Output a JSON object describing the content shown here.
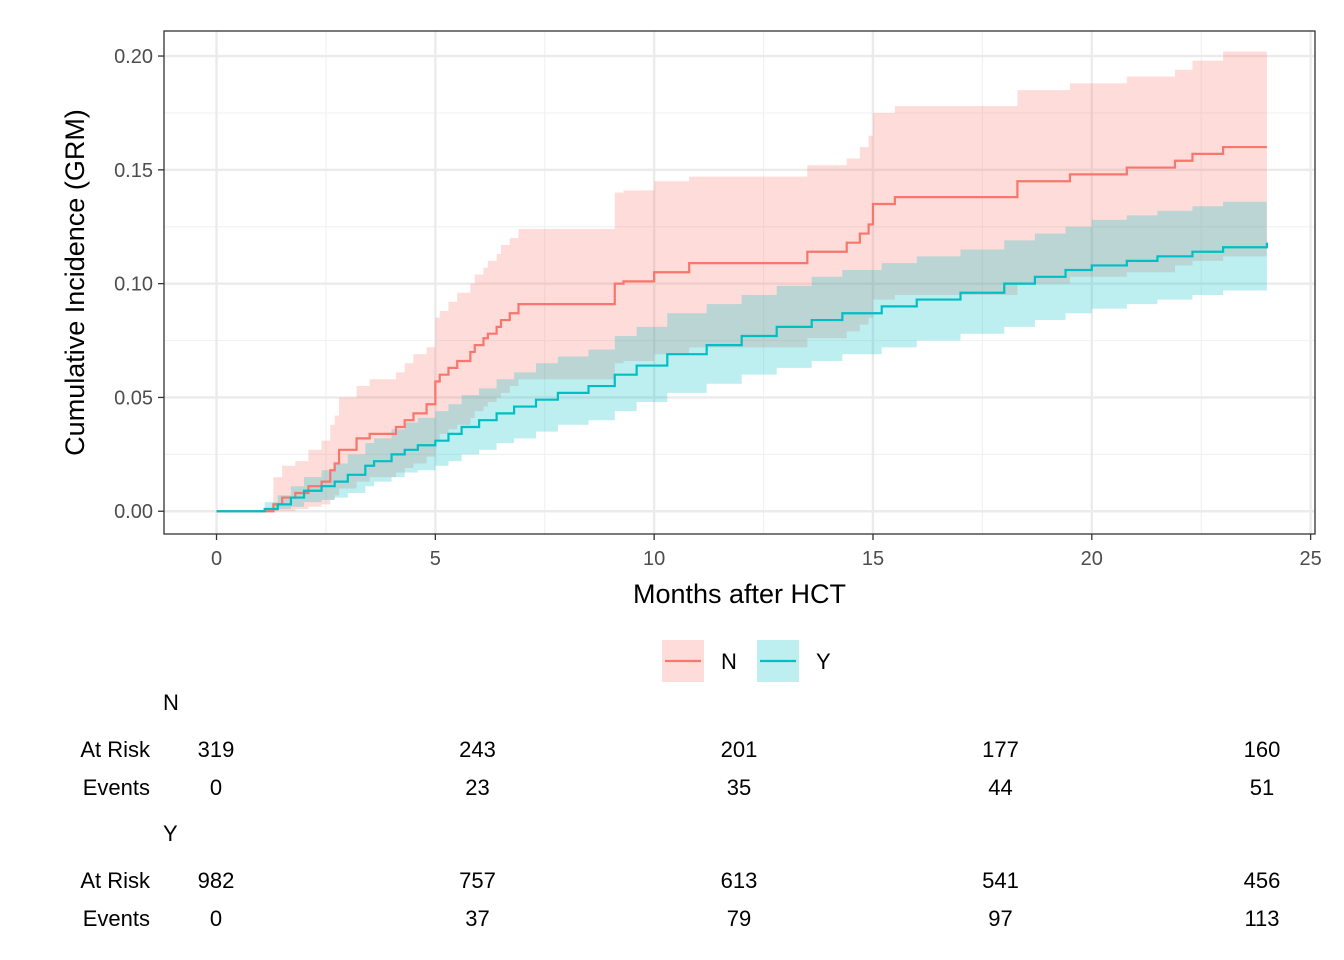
{
  "chart_data": {
    "type": "line",
    "xlabel": "Months after HCT",
    "ylabel": "Cumulative Incidence (GRM)",
    "xlim": [
      -1.2,
      25.1
    ],
    "ylim": [
      -0.01,
      0.211
    ],
    "x_ticks": [
      0,
      5,
      10,
      15,
      20,
      25
    ],
    "y_ticks": [
      0.0,
      0.05,
      0.1,
      0.15,
      0.2
    ],
    "x_tick_labels": [
      "0",
      "5",
      "10",
      "15",
      "20",
      "25"
    ],
    "y_tick_labels": [
      "0.00",
      "0.05",
      "0.10",
      "0.15",
      "0.20"
    ],
    "grid": true,
    "legend_position": "bottom",
    "series": [
      {
        "name": "N",
        "color": "#F8766D",
        "band_color": "#FBD5D1",
        "x": [
          0,
          0.9,
          1.3,
          1.5,
          1.8,
          2.1,
          2.4,
          2.6,
          2.7,
          2.8,
          3.2,
          3.5,
          4.1,
          4.3,
          4.5,
          4.8,
          5.0,
          5.1,
          5.3,
          5.5,
          5.8,
          5.9,
          6.1,
          6.2,
          6.4,
          6.5,
          6.7,
          6.9,
          9.1,
          9.3,
          10.0,
          10.8,
          13.5,
          14.4,
          14.7,
          14.9,
          15.0,
          15.5,
          18.3,
          19.5,
          20.8,
          21.9,
          22.3,
          23.0,
          24.0
        ],
        "y": [
          0,
          0,
          0.003,
          0.006,
          0.008,
          0.011,
          0.013,
          0.018,
          0.021,
          0.027,
          0.032,
          0.034,
          0.037,
          0.04,
          0.043,
          0.047,
          0.057,
          0.06,
          0.063,
          0.066,
          0.07,
          0.073,
          0.076,
          0.078,
          0.081,
          0.084,
          0.087,
          0.091,
          0.1,
          0.101,
          0.105,
          0.109,
          0.114,
          0.118,
          0.122,
          0.126,
          0.135,
          0.138,
          0.145,
          0.148,
          0.151,
          0.154,
          0.157,
          0.16,
          0.16
        ],
        "lower": [
          0,
          0,
          0.0,
          0.0,
          0.001,
          0.002,
          0.003,
          0.005,
          0.007,
          0.01,
          0.013,
          0.015,
          0.017,
          0.019,
          0.021,
          0.024,
          0.031,
          0.034,
          0.036,
          0.038,
          0.041,
          0.044,
          0.046,
          0.048,
          0.05,
          0.052,
          0.055,
          0.058,
          0.065,
          0.066,
          0.069,
          0.072,
          0.076,
          0.079,
          0.082,
          0.085,
          0.093,
          0.095,
          0.1,
          0.103,
          0.105,
          0.108,
          0.11,
          0.112,
          0.112
        ],
        "upper": [
          0,
          0,
          0.015,
          0.02,
          0.022,
          0.027,
          0.031,
          0.038,
          0.042,
          0.05,
          0.055,
          0.058,
          0.061,
          0.065,
          0.069,
          0.072,
          0.085,
          0.088,
          0.092,
          0.096,
          0.1,
          0.104,
          0.107,
          0.11,
          0.113,
          0.117,
          0.12,
          0.124,
          0.14,
          0.141,
          0.145,
          0.147,
          0.152,
          0.155,
          0.16,
          0.165,
          0.175,
          0.178,
          0.185,
          0.188,
          0.191,
          0.194,
          0.198,
          0.202,
          0.202
        ]
      },
      {
        "name": "Y",
        "color": "#00BFC4",
        "band_color": "#C4EDEE",
        "x": [
          0,
          0.9,
          1.1,
          1.4,
          1.7,
          2.0,
          2.4,
          2.7,
          3.0,
          3.4,
          3.6,
          4.0,
          4.3,
          4.6,
          5.0,
          5.3,
          5.6,
          6.0,
          6.4,
          6.8,
          7.3,
          7.8,
          8.5,
          9.1,
          9.6,
          10.3,
          11.2,
          12.0,
          12.8,
          13.6,
          14.3,
          15.2,
          16.0,
          17.0,
          18.0,
          18.7,
          19.4,
          20.0,
          20.8,
          21.5,
          22.3,
          23.0,
          24.0
        ],
        "y": [
          0,
          0,
          0.001,
          0.003,
          0.006,
          0.009,
          0.011,
          0.013,
          0.016,
          0.02,
          0.022,
          0.025,
          0.027,
          0.029,
          0.031,
          0.034,
          0.037,
          0.04,
          0.043,
          0.046,
          0.049,
          0.052,
          0.055,
          0.06,
          0.064,
          0.069,
          0.073,
          0.077,
          0.081,
          0.084,
          0.087,
          0.09,
          0.093,
          0.096,
          0.1,
          0.103,
          0.106,
          0.108,
          0.11,
          0.112,
          0.114,
          0.116,
          0.118
        ],
        "lower": [
          0,
          0,
          0.0,
          0.001,
          0.002,
          0.004,
          0.005,
          0.006,
          0.008,
          0.011,
          0.013,
          0.015,
          0.017,
          0.018,
          0.02,
          0.022,
          0.025,
          0.027,
          0.03,
          0.032,
          0.035,
          0.038,
          0.04,
          0.044,
          0.048,
          0.052,
          0.056,
          0.06,
          0.063,
          0.066,
          0.069,
          0.072,
          0.075,
          0.078,
          0.081,
          0.084,
          0.087,
          0.089,
          0.091,
          0.093,
          0.095,
          0.097,
          0.099
        ],
        "upper": [
          0,
          0,
          0.004,
          0.007,
          0.011,
          0.015,
          0.018,
          0.021,
          0.025,
          0.03,
          0.032,
          0.036,
          0.039,
          0.041,
          0.044,
          0.047,
          0.051,
          0.054,
          0.058,
          0.061,
          0.065,
          0.068,
          0.071,
          0.077,
          0.081,
          0.087,
          0.091,
          0.095,
          0.099,
          0.103,
          0.106,
          0.109,
          0.112,
          0.115,
          0.119,
          0.122,
          0.125,
          0.128,
          0.13,
          0.132,
          0.134,
          0.136,
          0.138
        ]
      }
    ],
    "risk_table": {
      "time_points": [
        0,
        6,
        12,
        18,
        24
      ],
      "row_labels": [
        "At Risk",
        "Events"
      ],
      "groups": [
        {
          "name": "N",
          "at_risk": [
            "319",
            "243",
            "201",
            "177",
            "160"
          ],
          "events": [
            "0",
            "23",
            "35",
            "44",
            "51"
          ]
        },
        {
          "name": "Y",
          "at_risk": [
            "982",
            "757",
            "613",
            "541",
            "456"
          ],
          "events": [
            "0",
            "37",
            "79",
            "97",
            "113"
          ]
        }
      ]
    }
  }
}
